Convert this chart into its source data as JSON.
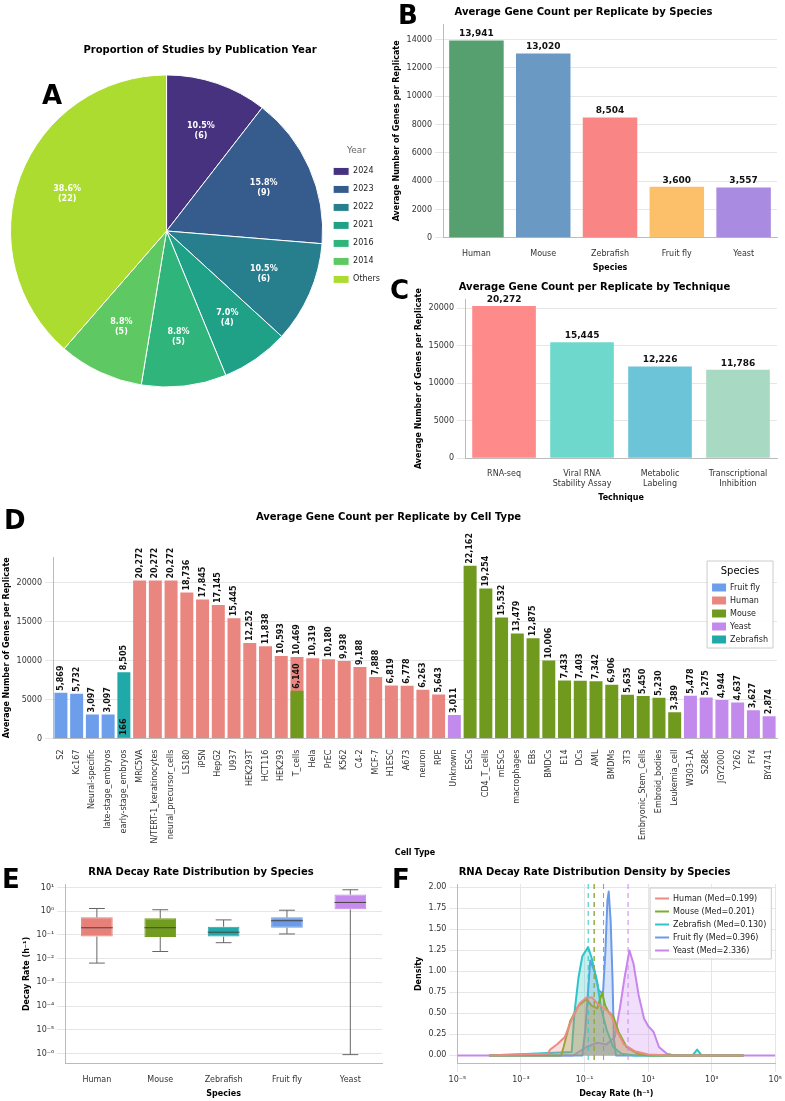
{
  "chart_data": [
    {
      "type": "pie",
      "title": "Proportion of Studies by Publication Year",
      "annotations": [
        "A"
      ],
      "categories": [
        "2024",
        "2023",
        "2022",
        "2021",
        "2016",
        "2014",
        "Others"
      ],
      "values": [
        10.5,
        15.8,
        10.5,
        7.0,
        8.8,
        8.8,
        38.6
      ],
      "colors": [
        "#46327e",
        "#365c8d",
        "#277f8e",
        "#1fa187",
        "#2fb47c",
        "#5ec962",
        "#addc30"
      ],
      "value_labels": [
        "10.5%\n(6)",
        "15.8%\n(9)",
        "10.5%\n(6)",
        "7.0%\n(4)",
        "8.8%\n(5)",
        "8.8%\n(5)",
        "38.6%\n(22)"
      ],
      "legend": "right",
      "legend_title": "Year"
    },
    {
      "type": "bar",
      "title": "Average Gene Count per Replicate by Species",
      "annotations": [
        "B"
      ],
      "xlabel": "Species",
      "ylabel": "Average Number of Genes per Replicate",
      "categories": [
        "Human",
        "Mouse",
        "Zebrafish",
        "Fruit fly",
        "Yeast"
      ],
      "values": [
        13941,
        13020,
        8504,
        3600,
        3557
      ],
      "colors": [
        "#55a06e",
        "#6a9ac4",
        "#f98585",
        "#fdc06a",
        "#a98be2"
      ],
      "value_labels": [
        "13,941",
        "13,020",
        "8,504",
        "3,600",
        "3,557"
      ],
      "ylim": [
        0,
        15100
      ],
      "yticks": [
        0,
        2000,
        4000,
        6000,
        8000,
        10000,
        12000,
        14000
      ],
      "grid": "y"
    },
    {
      "type": "bar",
      "title": "Average Gene Count per Replicate by Technique",
      "annotations": [
        "C"
      ],
      "xlabel": "Technique",
      "ylabel": "Average Number of Genes per Replicate",
      "categories": [
        "RNA-seq",
        "Viral RNA Stability Assay",
        "Metabolic Labeling",
        "Transcriptional Inhibition"
      ],
      "values": [
        20272,
        15445,
        12226,
        11786
      ],
      "colors": [
        "#ff8a8a",
        "#6fd8cc",
        "#6cc4d9",
        "#a8d9c2"
      ],
      "value_labels": [
        "20,272",
        "15,445",
        "12,226",
        "11,786"
      ],
      "ylim": [
        0,
        21200
      ],
      "yticks": [
        0,
        5000,
        10000,
        15000,
        20000
      ],
      "grid": "y"
    },
    {
      "type": "bar",
      "title": "Average Gene Count per Replicate by Cell Type",
      "annotations": [
        "D"
      ],
      "xlabel": "Cell Type",
      "ylabel": "Average Number of Genes per Replicate",
      "categories": [
        "S2",
        "Kc167",
        "Neural-specific",
        "late-stage_embryos",
        "early-stage_embryos",
        "MRC5VA",
        "N/TERT-1_keratinocytes",
        "neural_precursor_cells",
        "LS180",
        "iPSN",
        "HepG2",
        "U937",
        "HEK293T",
        "HCT116",
        "HEK293",
        "T_cells",
        "Hela",
        "PrEC",
        "K562",
        "C4-2",
        "MCF-7",
        "H1ESC",
        "A673",
        "neuron",
        "RPE",
        "Unknown",
        "ESCs",
        "CD4_T_cells",
        "mESCs",
        "macrophages",
        "EBs",
        "BMDCs",
        "E14",
        "DCs",
        "AML",
        "BMDMs",
        "3T3",
        "Embryonic_Stem_Cells",
        "Embroid_bodies",
        "Leukemia_cell",
        "W303-1A",
        "S288c",
        "JGY2000",
        "Y262",
        "FY4",
        "BY4741"
      ],
      "series": [
        {
          "name": "Fruit fly",
          "color": "#6d9eeb",
          "values": [
            5869,
            5732,
            3097,
            3097,
            166,
            null,
            null,
            null,
            null,
            null,
            null,
            null,
            null,
            null,
            null,
            null,
            null,
            null,
            null,
            null,
            null,
            null,
            null,
            null,
            null,
            null,
            null,
            null,
            null,
            null,
            null,
            null,
            null,
            null,
            null,
            null,
            null,
            null,
            null,
            null,
            null,
            null,
            null,
            null,
            null,
            null
          ],
          "value_labels": [
            "5,869",
            "5,732",
            "3,097",
            "3,097",
            "166",
            null,
            null,
            null,
            null,
            null,
            null,
            null,
            null,
            null,
            null,
            null,
            null,
            null,
            null,
            null,
            null,
            null,
            null,
            null,
            null,
            null,
            null,
            null,
            null,
            null,
            null,
            null,
            null,
            null,
            null,
            null,
            null,
            null,
            null,
            null,
            null,
            null,
            null,
            null,
            null,
            null
          ]
        },
        {
          "name": "Human",
          "color": "#ea8680",
          "values": [
            null,
            null,
            null,
            null,
            null,
            20272,
            20272,
            20272,
            18736,
            17845,
            17145,
            15445,
            12252,
            11838,
            10593,
            10469,
            10319,
            10180,
            9938,
            9188,
            7888,
            6819,
            6778,
            6263,
            5643,
            null,
            null,
            null,
            null,
            null,
            null,
            null,
            null,
            null,
            null,
            null,
            null,
            null,
            null,
            null,
            null,
            null,
            null,
            null,
            null,
            null
          ],
          "value_labels": [
            null,
            null,
            null,
            null,
            null,
            "20,272",
            "20,272",
            "20,272",
            "18,736",
            "17,845",
            "17,145",
            "15,445",
            "12,252",
            "11,838",
            "10,593",
            "10,469",
            "10,319",
            "10,180",
            "9,938",
            "9,188",
            "7,888",
            "6,819",
            "6,778",
            "6,263",
            "5,643",
            null,
            null,
            null,
            null,
            null,
            null,
            null,
            null,
            null,
            null,
            null,
            null,
            null,
            null,
            null,
            null,
            null,
            null,
            null,
            null,
            null
          ]
        },
        {
          "name": "Mouse",
          "color": "#6f9a1e",
          "values": [
            null,
            null,
            null,
            null,
            null,
            null,
            null,
            null,
            null,
            null,
            null,
            null,
            null,
            null,
            null,
            6140,
            null,
            null,
            null,
            null,
            null,
            null,
            null,
            null,
            null,
            null,
            22162,
            19254,
            15532,
            13479,
            12875,
            10006,
            7433,
            7403,
            7342,
            6906,
            5635,
            5450,
            5230,
            3389,
            null,
            null,
            null,
            null,
            null,
            null
          ],
          "value_labels": [
            null,
            null,
            null,
            null,
            null,
            null,
            null,
            null,
            null,
            null,
            null,
            null,
            null,
            null,
            null,
            "6,140",
            null,
            null,
            null,
            null,
            null,
            null,
            null,
            null,
            null,
            null,
            "22,162",
            "19,254",
            "15,532",
            "13,479",
            "12,875",
            "10,006",
            "7,433",
            "7,403",
            "7,342",
            "6,906",
            "5,635",
            "5,450",
            "5,230",
            "3,389",
            null,
            null,
            null,
            null,
            null,
            null
          ]
        },
        {
          "name": "Yeast",
          "color": "#c38aed",
          "values": [
            null,
            null,
            null,
            null,
            null,
            null,
            null,
            null,
            null,
            null,
            null,
            null,
            null,
            null,
            null,
            null,
            null,
            null,
            null,
            null,
            null,
            null,
            null,
            null,
            null,
            3011,
            null,
            null,
            null,
            null,
            null,
            null,
            null,
            null,
            null,
            null,
            null,
            null,
            null,
            null,
            5478,
            5275,
            4944,
            4637,
            3627,
            2874
          ],
          "value_labels": [
            null,
            null,
            null,
            null,
            null,
            null,
            null,
            null,
            null,
            null,
            null,
            null,
            null,
            null,
            null,
            null,
            null,
            null,
            null,
            null,
            null,
            null,
            null,
            null,
            null,
            "3,011",
            null,
            null,
            null,
            null,
            null,
            null,
            null,
            null,
            null,
            null,
            null,
            null,
            null,
            null,
            "5,478",
            "5,275",
            "4,944",
            "4,637",
            "3,627",
            "2,874"
          ]
        },
        {
          "name": "Zebrafish",
          "color": "#1fa9a9",
          "values": [
            null,
            null,
            null,
            null,
            8505,
            null,
            null,
            null,
            null,
            null,
            null,
            null,
            null,
            null,
            null,
            null,
            null,
            null,
            null,
            null,
            null,
            null,
            null,
            null,
            null,
            null,
            null,
            null,
            null,
            null,
            null,
            null,
            null,
            null,
            null,
            null,
            null,
            null,
            null,
            null,
            null,
            null,
            null,
            null,
            null,
            null
          ],
          "value_labels": [
            null,
            null,
            null,
            null,
            "8,505",
            null,
            null,
            null,
            null,
            null,
            null,
            null,
            null,
            null,
            null,
            null,
            null,
            null,
            null,
            null,
            null,
            null,
            null,
            null,
            null,
            null,
            null,
            null,
            null,
            null,
            null,
            null,
            null,
            null,
            null,
            null,
            null,
            null,
            null,
            null,
            null,
            null,
            null,
            null,
            null,
            null
          ]
        }
      ],
      "ylim": [
        0,
        23300
      ],
      "yticks": [
        0,
        5000,
        10000,
        15000,
        20000
      ],
      "grid": "y",
      "legend": "top right",
      "legend_title": "Species"
    },
    {
      "type": "box",
      "title": "RNA Decay Rate Distribution by Species",
      "annotations": [
        "E"
      ],
      "xlabel": "Species",
      "ylabel": "Decay Rate (h⁻¹)",
      "categories": [
        "Human",
        "Mouse",
        "Zebrafish",
        "Fruit fly",
        "Yeast"
      ],
      "colors": [
        "#e8807a",
        "#719c1f",
        "#22a8a8",
        "#6c9ce8",
        "#c78bee"
      ],
      "boxes": [
        {
          "low": 0.0065,
          "q1": 0.085,
          "median": 0.2,
          "q3": 0.55,
          "high": 1.3
        },
        {
          "low": 0.02,
          "q1": 0.082,
          "median": 0.201,
          "q3": 0.5,
          "high": 1.15
        },
        {
          "low": 0.047,
          "q1": 0.085,
          "median": 0.13,
          "q3": 0.22,
          "high": 0.43
        },
        {
          "low": 0.11,
          "q1": 0.2,
          "median": 0.396,
          "q3": 0.55,
          "high": 1.1
        },
        {
          "low": 9e-07,
          "q1": 1.2,
          "median": 2.336,
          "q3": 5,
          "high": 8
        }
      ],
      "log": true,
      "ylim": [
        3.7e-07,
        14
      ],
      "yticks": [
        {
          "value": 1e-06,
          "label": "10⁻⁶"
        },
        {
          "value": 1e-05,
          "label": "10⁻⁵"
        },
        {
          "value": 0.0001,
          "label": "10⁻⁴"
        },
        {
          "value": 0.001,
          "label": "10⁻³"
        },
        {
          "value": 0.01,
          "label": "10⁻²"
        },
        {
          "value": 0.1,
          "label": "10⁻¹"
        },
        {
          "value": 1,
          "label": "10⁰"
        },
        {
          "value": 10,
          "label": "10¹"
        }
      ],
      "grid": "y"
    },
    {
      "type": "area",
      "title": "RNA Decay Rate Distribution Density by Species",
      "annotations": [
        "F"
      ],
      "xlabel": "Decay Rate (h⁻¹)",
      "ylabel": "Density",
      "series": [
        {
          "name": "Human (Med=0.199)",
          "color": "#ec8a84",
          "x": [
            0.0001,
            0.00684,
            0.00832,
            0.0135,
            0.024,
            0.0437,
            0.0708,
            0.115,
            0.17,
            0.251,
            0.447,
            0.661,
            0.977,
            1.74,
            3.8,
            10,
            47.9,
            10000
          ],
          "values": [
            0,
            0.02,
            0.07,
            0.13,
            0.22,
            0.47,
            0.62,
            0.69,
            0.69,
            0.62,
            0.55,
            0.5,
            0.31,
            0.13,
            0.05,
            0.01,
            0,
            0
          ]
        },
        {
          "name": "Mouse (Med=0.201)",
          "color": "#7cae2a",
          "x": [
            0.0001,
            0.0182,
            0.0219,
            0.0355,
            0.0646,
            0.115,
            0.17,
            0.251,
            0.355,
            0.447,
            0.603,
            0.794,
            1.17,
            2.09,
            4.57,
            10,
            10000
          ],
          "values": [
            0,
            0,
            0.1,
            0.41,
            0.59,
            0.67,
            0.59,
            0.56,
            0.75,
            0.59,
            0.5,
            0.47,
            0.28,
            0.1,
            0.02,
            0,
            0
          ]
        },
        {
          "name": "Zebrafish (Med=0.130)",
          "color": "#2ec4c9",
          "x": [
            0.0001,
            0.0394,
            0.0479,
            0.0646,
            0.0851,
            0.129,
            0.17,
            0.251,
            0.331,
            0.49,
            0.794,
            1.45,
            3.8,
            251,
            347,
            479,
            10000
          ],
          "values": [
            0,
            0.04,
            0.5,
            0.93,
            1.18,
            1.29,
            1.15,
            0.87,
            0.56,
            0.31,
            0.1,
            0.02,
            0,
            0,
            0.07,
            0,
            0
          ]
        },
        {
          "name": "Fruit fly (Med=0.396)",
          "color": "#6b9be8",
          "x": [
            0.0001,
            0.0851,
            0.105,
            0.126,
            0.151,
            0.204,
            0.275,
            0.331,
            0.38,
            0.447,
            0.525,
            0.575,
            0.661,
            0.759,
            0.832,
            0.977,
            10000
          ],
          "values": [
            0,
            0,
            0.3,
            0.72,
            1.13,
            1.0,
            0.78,
            0.75,
            0.75,
            1.2,
            1.85,
            1.95,
            1.6,
            0.9,
            0.2,
            0,
            0
          ]
        },
        {
          "name": "Yeast (Med=2.336)",
          "color": "#c885ee",
          "x": [
            1e-05,
            0.0437,
            0.115,
            0.251,
            0.49,
            0.891,
            1.29,
            1.82,
            2.57,
            3.47,
            5.01,
            7.41,
            10,
            14.8,
            21.9,
            38.9,
            69.2,
            100000
          ],
          "values": [
            0,
            0,
            0.1,
            0.15,
            0.13,
            0.22,
            0.56,
            0.93,
            1.25,
            1.09,
            0.72,
            0.44,
            0.35,
            0.28,
            0.1,
            0.02,
            0,
            0
          ]
        }
      ],
      "ref_lines": [
        {
          "axis": "x",
          "value": 0.199,
          "color": "#ec8a84",
          "line_style": "dashed"
        },
        {
          "axis": "x",
          "value": 0.201,
          "color": "#7cae2a",
          "line_style": "dashed"
        },
        {
          "axis": "x",
          "value": 0.13,
          "color": "#2ec4c9",
          "line_style": "dashed"
        },
        {
          "axis": "x",
          "value": 0.396,
          "color": "#6b9be8",
          "line_style": "dashed"
        },
        {
          "axis": "x",
          "value": 2.336,
          "color": "#c885ee",
          "line_style": "dashed"
        }
      ],
      "log": "x",
      "xlim": [
        1e-05,
        100000
      ],
      "xticks": [
        {
          "value": 1e-05,
          "label": "10⁻⁵"
        },
        {
          "value": 0.001,
          "label": "10⁻³"
        },
        {
          "value": 0.1,
          "label": "10⁻¹"
        },
        {
          "value": 10,
          "label": "10¹"
        },
        {
          "value": 1000,
          "label": "10³"
        },
        {
          "value": 100000,
          "label": "10⁵"
        }
      ],
      "ylim": [
        -0.1,
        2.04
      ],
      "yticks": [
        {
          "value": 0,
          "label": "0.00"
        },
        {
          "value": 0.25,
          "label": "0.25"
        },
        {
          "value": 0.5,
          "label": "0.50"
        },
        {
          "value": 0.75,
          "label": "0.75"
        },
        {
          "value": 1,
          "label": "1.00"
        },
        {
          "value": 1.25,
          "label": "1.25"
        },
        {
          "value": 1.5,
          "label": "1.50"
        },
        {
          "value": 1.75,
          "label": "1.75"
        },
        {
          "value": 2,
          "label": "2.00"
        }
      ],
      "grid": true,
      "legend": "top right"
    }
  ]
}
